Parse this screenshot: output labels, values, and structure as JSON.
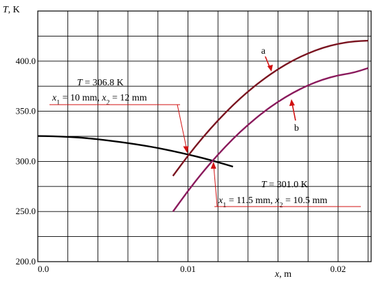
{
  "chart_data": {
    "type": "line",
    "xlabel": "x, m",
    "ylabel": "T, K",
    "xlim": [
      0.0,
      0.0222
    ],
    "ylim": [
      200.0,
      450.0
    ],
    "grid": true,
    "x_tick_labels": [
      {
        "value": 0.0,
        "label": "0.0"
      },
      {
        "value": 0.01,
        "label": "0.01"
      },
      {
        "value": 0.02,
        "label": "0.02"
      }
    ],
    "y_tick_labels": [
      {
        "value": 200.0,
        "label": "200.0"
      },
      {
        "value": 250.0,
        "label": "250.0"
      },
      {
        "value": 300.0,
        "label": "300.0"
      },
      {
        "value": 350.0,
        "label": "350.0"
      },
      {
        "value": 400.0,
        "label": "400.0"
      }
    ],
    "series": [
      {
        "color": "#000000",
        "x": [
          0.0,
          0.001,
          0.002,
          0.003,
          0.004,
          0.005,
          0.006,
          0.007,
          0.008,
          0.009,
          0.01,
          0.011,
          0.012,
          0.013
        ],
        "y": [
          325.3,
          325.1,
          324.5,
          323.5,
          322.1,
          320.3,
          318.3,
          316.0,
          313.4,
          310.3,
          306.9,
          303.3,
          299.2,
          294.8
        ]
      },
      {
        "name": "a",
        "color": "#7a1420",
        "x": [
          0.009,
          0.01,
          0.011,
          0.012,
          0.013,
          0.014,
          0.015,
          0.016,
          0.017,
          0.018,
          0.019,
          0.02,
          0.021,
          0.022
        ],
        "y": [
          285.5,
          305.7,
          324.2,
          341.0,
          356.2,
          369.8,
          381.7,
          392.1,
          400.8,
          407.9,
          413.5,
          417.4,
          419.7,
          420.4
        ]
      },
      {
        "name": "b",
        "color": "#8a1a5c",
        "x": [
          0.009,
          0.01,
          0.011,
          0.012,
          0.013,
          0.014,
          0.015,
          0.016,
          0.017,
          0.018,
          0.019,
          0.02,
          0.021,
          0.022
        ],
        "y": [
          249.9,
          270.6,
          289.6,
          306.9,
          322.6,
          336.6,
          348.9,
          359.6,
          368.6,
          376.0,
          381.8,
          385.9,
          388.3,
          393.1
        ]
      }
    ],
    "annotations": [
      {
        "id": "intersection-1",
        "line1": "T = 306.8 K",
        "line2": "x₁ = 10 mm, x₂ = 12 mm",
        "point": {
          "x": 0.01,
          "y": 306.8
        }
      },
      {
        "id": "intersection-2",
        "line1": "T = 301.0 K",
        "line2": "x₁ = 11.5 mm, x₂ = 10.5 mm",
        "point": {
          "x": 0.0117,
          "y": 301.0
        }
      }
    ],
    "curve_labels": [
      {
        "text": "a",
        "series": "a"
      },
      {
        "text": "b",
        "series": "b"
      }
    ]
  }
}
